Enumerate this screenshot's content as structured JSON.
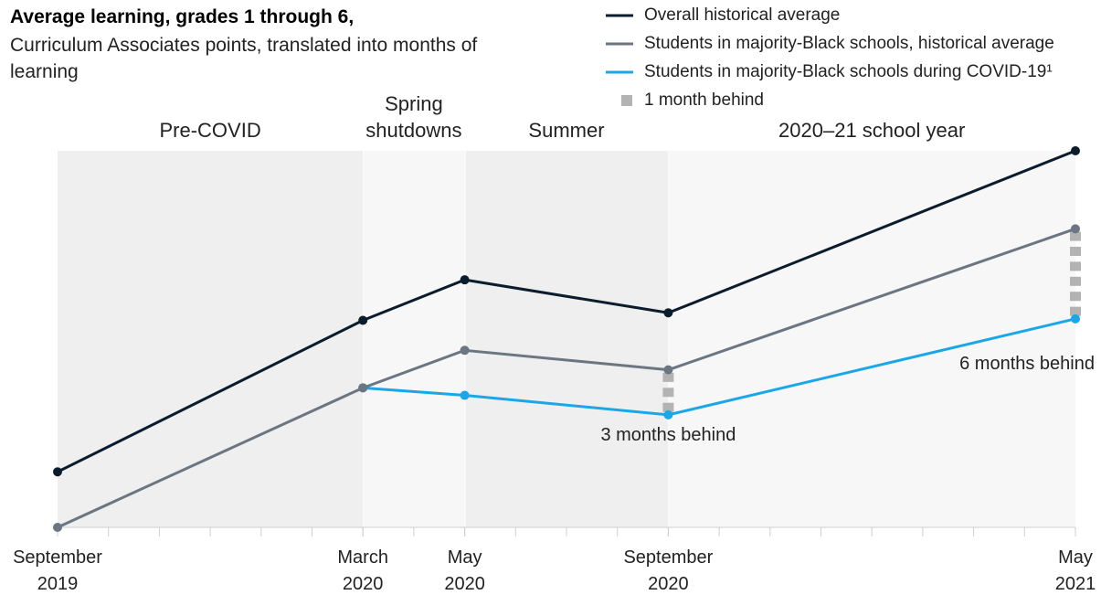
{
  "chart_data": {
    "type": "line",
    "title": "Average learning, grades 1 through 6,",
    "subtitle": "Curriculum Associates points, translated into months of learning",
    "x": [
      "2019-09",
      "2020-03",
      "2020-05",
      "2020-09",
      "2021-05"
    ],
    "xlim": [
      "2019-09",
      "2021-05"
    ],
    "xticks": [
      {
        "value": "2019-09",
        "label": "September 2019"
      },
      {
        "value": "2020-03",
        "label": "March 2020"
      },
      {
        "value": "2020-05",
        "label": "May 2020"
      },
      {
        "value": "2020-09",
        "label": "September 2020"
      },
      {
        "value": "2021-05",
        "label": "May 2021"
      }
    ],
    "ylim": [
      0,
      25.1
    ],
    "series": [
      {
        "name": "Overall historical average",
        "color": "#0b1d2c",
        "values": [
          3.7,
          13.8,
          16.5,
          14.3,
          25.1
        ]
      },
      {
        "name": "Students in majority-Black schools, historical average",
        "color": "#6b7682",
        "values": [
          0,
          9.3,
          11.8,
          10.5,
          19.9
        ]
      },
      {
        "name": "Students in majority-Black schools during COVID-19¹",
        "color": "#1aa7e8",
        "values": [
          null,
          9.3,
          8.8,
          7.5,
          13.9
        ]
      }
    ],
    "periods": [
      {
        "label": "Pre-COVID",
        "start": "2019-09",
        "end": "2020-03",
        "color": "#efefef"
      },
      {
        "label": "Spring shutdowns",
        "start": "2020-03",
        "end": "2020-05",
        "color": "#f7f7f7"
      },
      {
        "label": "Summer",
        "start": "2020-05",
        "end": "2020-09",
        "color": "#efefef"
      },
      {
        "label": "2020–21 school year",
        "start": "2020-09",
        "end": "2021-05",
        "color": "#f7f7f7"
      }
    ],
    "gap_marker": {
      "label": "1 month behind",
      "color": "#b3b3b3"
    },
    "gaps": [
      {
        "x": "2020-09",
        "months": 3,
        "label": "3 months behind"
      },
      {
        "x": "2021-05",
        "months": 6,
        "label": "6 months behind"
      }
    ]
  }
}
